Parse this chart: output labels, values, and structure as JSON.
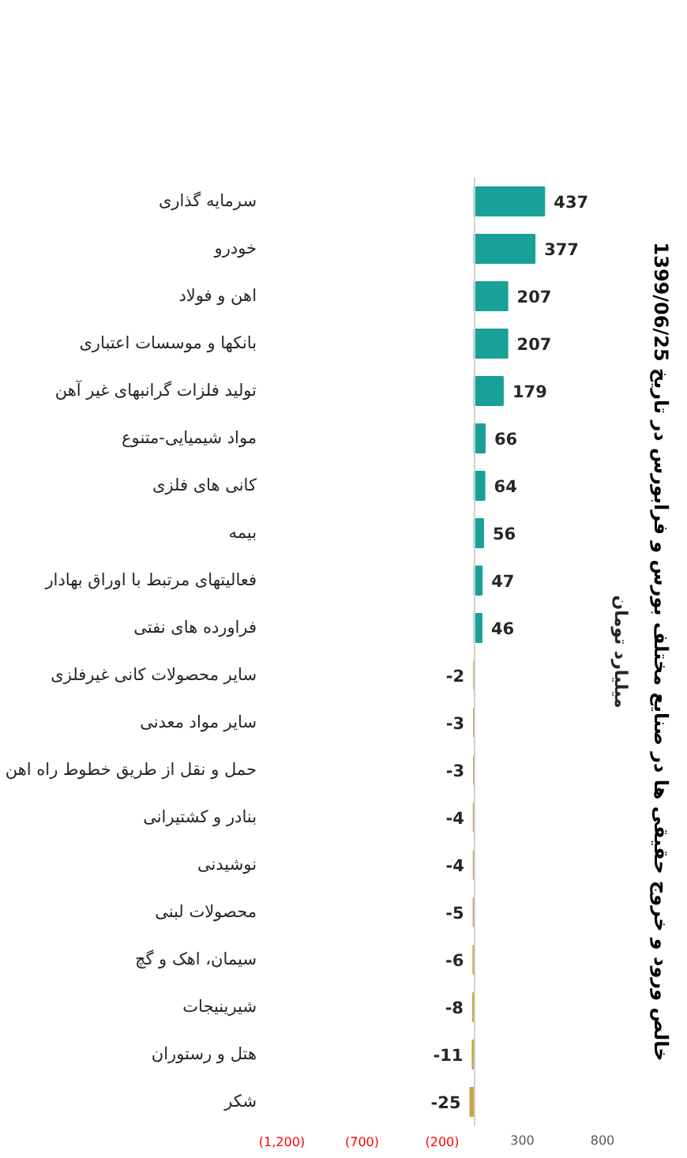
{
  "chart_data": {
    "type": "bar",
    "orientation": "horizontal",
    "title": "خالص ورود و خروج حقیقی ها در صنایع مختلف بورس و فرابورس در تاریخ 1399/06/25",
    "subtitle": "میلیارد تومان",
    "categories": [
      "سرمایه گذاری",
      "خودرو",
      "اهن و فولاد",
      "بانکها و موسسات اعتباری",
      "تولید فلزات گرانبهای غیر آهن",
      "مواد شیمیایی-متنوع",
      "کانی های فلزی",
      "بیمه",
      "فعالیتهای مرتبط با اوراق بهادار",
      "فراورده های نفتی",
      "سایر محصولات کانی غیرفلزی",
      "سایر مواد معدنی",
      "حمل و نقل از طریق خطوط راه اهن",
      "بنادر و کشتیرانی",
      "نوشیدنی",
      "محصولات لبنی",
      "سیمان، اهک و گچ",
      "شیرینیجات",
      "هتل و رستوران",
      "شکر"
    ],
    "values": [
      437,
      377,
      207,
      207,
      179,
      66,
      64,
      56,
      47,
      46,
      -2,
      -3,
      -3,
      -4,
      -4,
      -5,
      -6,
      -8,
      -11,
      -25
    ],
    "colors": [
      "#17a199",
      "#17a199",
      "#17a199",
      "#17a199",
      "#17a199",
      "#17a199",
      "#17a199",
      "#17a199",
      "#17a199",
      "#17a199",
      "#c9a640",
      "#c9a640",
      "#c9a640",
      "#c9a640",
      "#c9a640",
      "#c9a640",
      "#c9a640",
      "#c9a640",
      "#c9a640",
      "#c9a640"
    ],
    "xlim": [
      -1200,
      800
    ],
    "xticks": [
      {
        "value": -1200,
        "label": "(1,200)"
      },
      {
        "value": -700,
        "label": "(700)"
      },
      {
        "value": -200,
        "label": "(200)"
      },
      300,
      800
    ],
    "data_labels": true
  }
}
